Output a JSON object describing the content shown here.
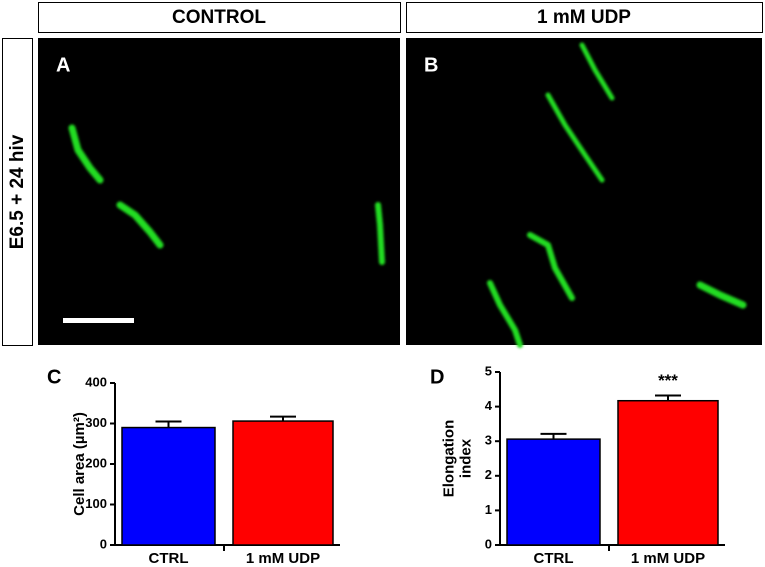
{
  "headers": [
    "CONTROL",
    "1 mM UDP"
  ],
  "row_label": "E6.5 + 24 hiv",
  "panels": [
    "A",
    "B",
    "C",
    "D"
  ],
  "chart_data": [
    {
      "type": "bar",
      "ylabel": [
        "Cell area (µm²)"
      ],
      "categories": [
        "CTRL",
        "1 mM UDP"
      ],
      "series": [
        {
          "colors": [
            "#0000ff",
            "#ff0000"
          ],
          "values": [
            290,
            306
          ],
          "errors": [
            15,
            11
          ]
        }
      ],
      "ylim": [
        0,
        400
      ],
      "yticks": [
        0,
        100,
        200,
        300,
        400
      ]
    },
    {
      "type": "bar",
      "ylabel": [
        "Elongation",
        "index"
      ],
      "categories": [
        "CTRL",
        "1 mM UDP"
      ],
      "series": [
        {
          "colors": [
            "#0000ff",
            "#ff0000"
          ],
          "values": [
            3.06,
            4.17
          ],
          "errors": [
            0.15,
            0.15
          ]
        }
      ],
      "ylim": [
        0,
        5
      ],
      "yticks": [
        0,
        1,
        2,
        3,
        4,
        5
      ],
      "annotations": [
        {
          "index": 1,
          "text": "***"
        }
      ]
    }
  ]
}
